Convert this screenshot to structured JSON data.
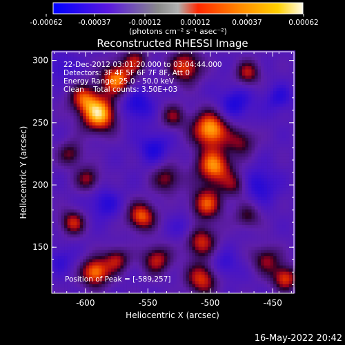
{
  "colorbar": {
    "tick_labels": [
      "-0.00062",
      "-0.00037",
      "-0.00012",
      "0.00012",
      "0.00037",
      "0.00062"
    ],
    "unit_label": "(photons cm⁻² s⁻¹ asec⁻²)",
    "colors": [
      "#0000ff",
      "#6a00d8",
      "#b0b0b0",
      "#ff4000",
      "#ff8c00",
      "#fff4c8"
    ]
  },
  "title": "Reconstructed RHESSI Image",
  "info_lines": [
    "22-Dec-2012 03:01:20.000 to 03:04:44.000",
    "Detectors: 3F 4F 5F 6F 7F 8F, Att 0",
    "Energy Range: 25.0 - 50.0 keV",
    "Clean    Total counts: 3.50E+03"
  ],
  "peak_label": "Position of Peak = [-589,257]",
  "footer_date": "16-May-2022 20:42",
  "chart_data": {
    "type": "heatmap",
    "title": "Reconstructed RHESSI Image",
    "xlabel": "Heliocentric X (arcsec)",
    "ylabel": "Heliocentric Y (arcsec)",
    "xlim": [
      -627,
      -433
    ],
    "ylim": [
      113,
      307
    ],
    "x_ticks": [
      -600,
      -550,
      -500,
      -450
    ],
    "x_tick_labels": [
      "-600",
      "-550",
      "-500",
      "-450"
    ],
    "y_ticks": [
      150,
      200,
      250,
      300
    ],
    "y_tick_labels": [
      "150",
      "200",
      "250",
      "300"
    ],
    "value_range": [
      -0.00062,
      0.00062
    ],
    "peak_position": [
      -589,
      257
    ],
    "colormap": [
      "#0000ff",
      "#6a00d8",
      "#2a0050",
      "#ff3000",
      "#ff9000",
      "#fff8d0"
    ],
    "bright_sources": [
      {
        "x": -589,
        "y": 257,
        "strength": 1.0,
        "size": 10
      },
      {
        "x": -575,
        "y": 285,
        "strength": 0.85,
        "size": 9
      },
      {
        "x": -602,
        "y": 270,
        "strength": 0.6,
        "size": 8
      },
      {
        "x": -500,
        "y": 245,
        "strength": 0.95,
        "size": 10
      },
      {
        "x": -497,
        "y": 215,
        "strength": 0.85,
        "size": 10
      },
      {
        "x": -503,
        "y": 185,
        "strength": 0.7,
        "size": 9
      },
      {
        "x": -508,
        "y": 155,
        "strength": 0.65,
        "size": 9
      },
      {
        "x": -506,
        "y": 125,
        "strength": 0.7,
        "size": 9
      },
      {
        "x": -520,
        "y": 295,
        "strength": 0.7,
        "size": 9
      },
      {
        "x": -555,
        "y": 175,
        "strength": 0.75,
        "size": 8
      },
      {
        "x": -543,
        "y": 140,
        "strength": 0.6,
        "size": 8
      },
      {
        "x": -575,
        "y": 140,
        "strength": 0.55,
        "size": 7
      },
      {
        "x": -592,
        "y": 130,
        "strength": 0.85,
        "size": 8
      },
      {
        "x": -610,
        "y": 170,
        "strength": 0.6,
        "size": 7
      },
      {
        "x": -612,
        "y": 225,
        "strength": 0.45,
        "size": 7
      },
      {
        "x": -598,
        "y": 205,
        "strength": 0.5,
        "size": 7
      },
      {
        "x": -535,
        "y": 205,
        "strength": 0.5,
        "size": 8
      },
      {
        "x": -530,
        "y": 255,
        "strength": 0.45,
        "size": 7
      },
      {
        "x": -470,
        "y": 290,
        "strength": 0.55,
        "size": 7
      },
      {
        "x": -475,
        "y": 235,
        "strength": 0.45,
        "size": 8
      },
      {
        "x": -470,
        "y": 175,
        "strength": 0.4,
        "size": 7
      },
      {
        "x": -455,
        "y": 140,
        "strength": 0.5,
        "size": 8
      },
      {
        "x": -440,
        "y": 125,
        "strength": 0.7,
        "size": 7
      },
      {
        "x": -560,
        "y": 300,
        "strength": 0.5,
        "size": 7
      },
      {
        "x": -480,
        "y": 200,
        "strength": 0.4,
        "size": 7
      }
    ],
    "dark_sources": [
      {
        "x": -560,
        "y": 265,
        "strength": 0.8,
        "size": 10
      },
      {
        "x": -545,
        "y": 230,
        "strength": 0.7,
        "size": 9
      },
      {
        "x": -480,
        "y": 265,
        "strength": 0.75,
        "size": 10
      },
      {
        "x": -460,
        "y": 200,
        "strength": 0.7,
        "size": 10
      },
      {
        "x": -585,
        "y": 185,
        "strength": 0.65,
        "size": 9
      },
      {
        "x": -520,
        "y": 165,
        "strength": 0.55,
        "size": 8
      },
      {
        "x": -620,
        "y": 140,
        "strength": 0.5,
        "size": 8
      },
      {
        "x": -490,
        "y": 135,
        "strength": 0.6,
        "size": 9
      },
      {
        "x": -620,
        "y": 295,
        "strength": 0.5,
        "size": 8
      },
      {
        "x": -445,
        "y": 270,
        "strength": 0.6,
        "size": 8
      }
    ]
  }
}
